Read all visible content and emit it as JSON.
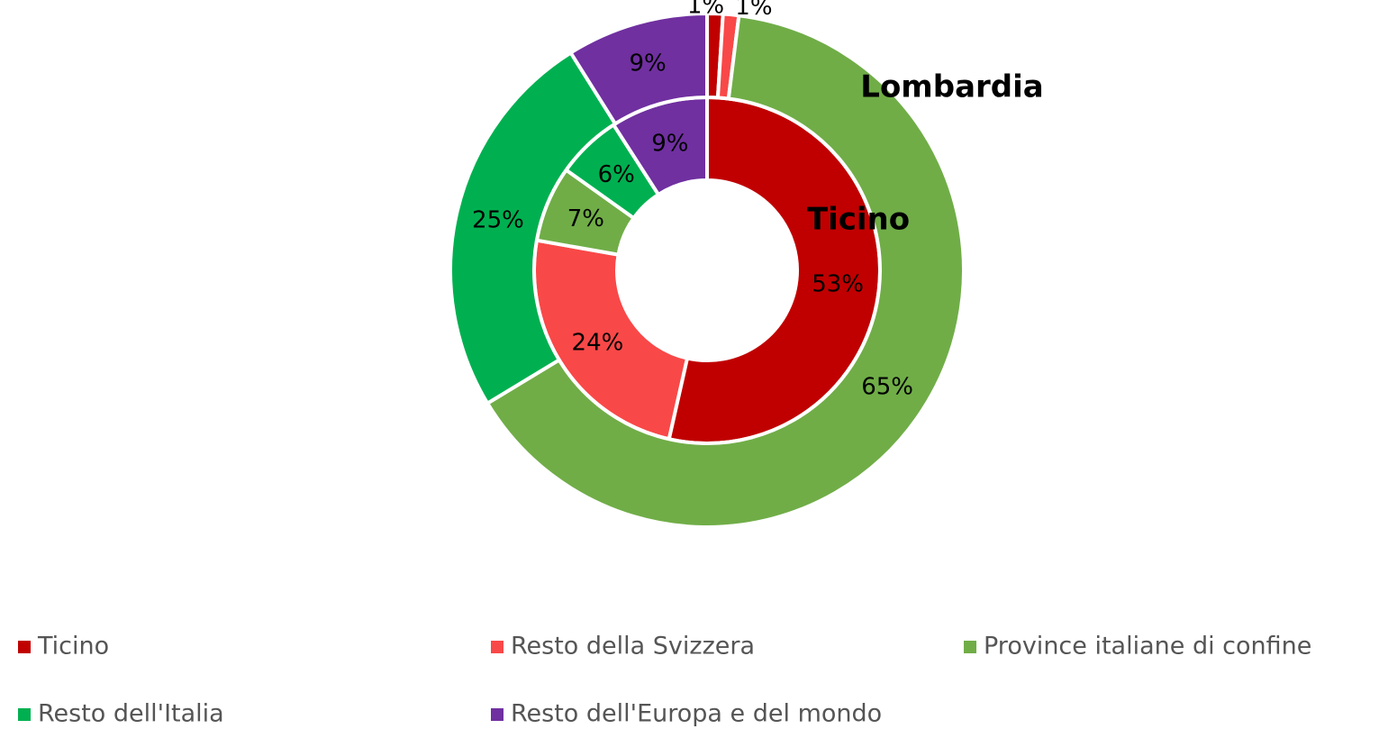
{
  "chart_data": {
    "type": "donut",
    "categories": [
      "Ticino",
      "Resto della Svizzera",
      "Province italiane di confine",
      "Resto dell'Italia",
      "Resto dell'Europa e del mondo"
    ],
    "colors": [
      "#c00000",
      "#f94848",
      "#70ad47",
      "#00b050",
      "#7030a0"
    ],
    "series": [
      {
        "name": "Ticino",
        "values": [
          53,
          24,
          7,
          6,
          9
        ],
        "value_labels": [
          "53%",
          "24%",
          "7%",
          "6%",
          "9%"
        ]
      },
      {
        "name": "Lombardia",
        "values": [
          1,
          1,
          65,
          25,
          9
        ],
        "value_labels": [
          "1%",
          "1%",
          "65%",
          "25%",
          "9%"
        ]
      }
    ]
  }
}
